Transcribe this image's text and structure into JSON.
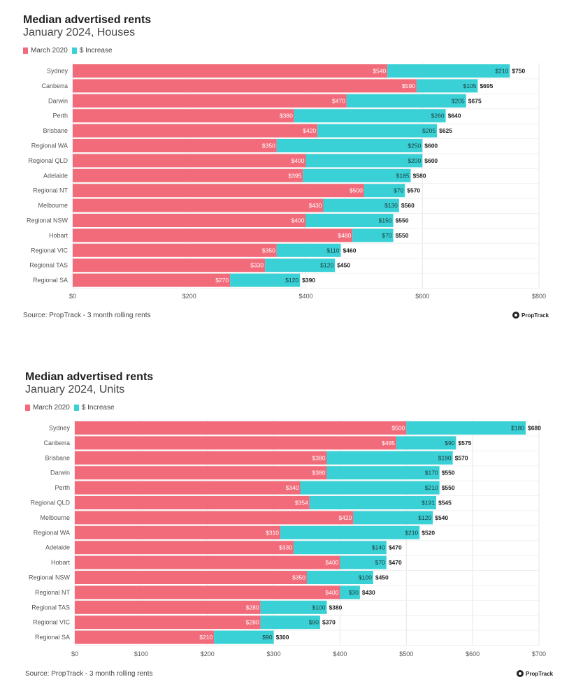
{
  "colors": {
    "base": "#f26b7a",
    "increase": "#3ad1d6",
    "grid": "#e6e6e6"
  },
  "chart_data": [
    {
      "type": "bar",
      "orientation": "horizontal",
      "stacked": true,
      "title": "Median advertised rents",
      "subtitle": "January 2024, Houses",
      "legend": [
        "March 2020",
        "$ Increase"
      ],
      "legend_position": "top-left",
      "source": "Source: PropTrack - 3 month rolling rents",
      "logo_text": "PropTrack",
      "categories": [
        "Sydney",
        "Canberra",
        "Darwin",
        "Perth",
        "Brisbane",
        "Regional WA",
        "Regional QLD",
        "Adelaide",
        "Regional NT",
        "Melbourne",
        "Regional NSW",
        "Hobart",
        "Regional VIC",
        "Regional TAS",
        "Regional SA"
      ],
      "series": [
        {
          "name": "March 2020",
          "values": [
            540,
            590,
            470,
            380,
            420,
            350,
            400,
            395,
            500,
            430,
            400,
            480,
            350,
            330,
            270
          ]
        },
        {
          "name": "$ Increase",
          "values": [
            210,
            105,
            205,
            260,
            205,
            250,
            200,
            185,
            70,
            130,
            150,
            70,
            110,
            120,
            120
          ]
        }
      ],
      "totals": [
        750,
        695,
        675,
        640,
        625,
        600,
        600,
        580,
        570,
        560,
        550,
        550,
        460,
        450,
        390
      ],
      "xlim": [
        0,
        800
      ],
      "xticks": [
        "$0",
        "$200",
        "$400",
        "$600",
        "$800"
      ],
      "grid": true
    },
    {
      "type": "bar",
      "orientation": "horizontal",
      "stacked": true,
      "title": "Median advertised rents",
      "subtitle": "January 2024, Units",
      "legend": [
        "March 2020",
        "$ Increase"
      ],
      "legend_position": "top-left",
      "source": "Source: PropTrack - 3 month rolling rents",
      "logo_text": "PropTrack",
      "categories": [
        "Sydney",
        "Canberra",
        "Brisbane",
        "Darwin",
        "Perth",
        "Regional QLD",
        "Melbourne",
        "Regional WA",
        "Adelaide",
        "Hobart",
        "Regional NSW",
        "Regional NT",
        "Regional TAS",
        "Regional VIC",
        "Regional SA"
      ],
      "series": [
        {
          "name": "March 2020",
          "values": [
            500,
            485,
            380,
            380,
            340,
            354,
            420,
            310,
            330,
            400,
            350,
            400,
            280,
            280,
            210
          ]
        },
        {
          "name": "$ Increase",
          "values": [
            180,
            90,
            190,
            170,
            210,
            191,
            120,
            210,
            140,
            70,
            100,
            30,
            100,
            90,
            90
          ]
        }
      ],
      "totals": [
        680,
        575,
        570,
        550,
        550,
        545,
        540,
        520,
        470,
        470,
        450,
        430,
        380,
        370,
        300
      ],
      "xlim": [
        0,
        700
      ],
      "xticks": [
        "$0",
        "$100",
        "$200",
        "$300",
        "$400",
        "$500",
        "$600",
        "$700"
      ],
      "grid": true
    }
  ]
}
